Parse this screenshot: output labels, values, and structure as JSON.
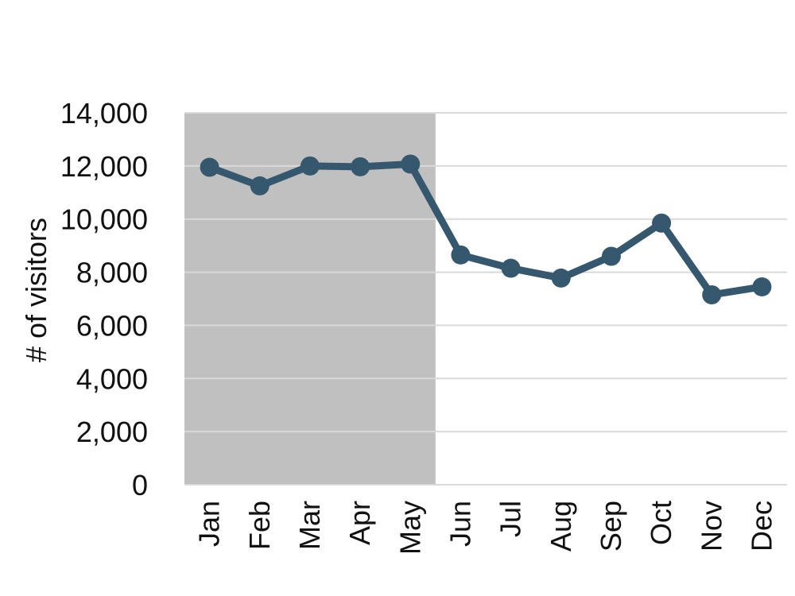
{
  "chart_data": {
    "type": "line",
    "title": "",
    "xlabel": "",
    "ylabel": "# of visitors",
    "categories": [
      "Jan",
      "Feb",
      "Mar",
      "Apr",
      "May",
      "Jun",
      "Jul",
      "Aug",
      "Sep",
      "Oct",
      "Nov",
      "Dec"
    ],
    "series": [
      {
        "values": [
          11950,
          11250,
          12000,
          11970,
          12070,
          8650,
          8150,
          7780,
          8600,
          9850,
          7150,
          7450
        ],
        "color": "#36586f"
      }
    ],
    "ylim": [
      0,
      14000
    ],
    "yticks": [
      0,
      2000,
      4000,
      6000,
      8000,
      10000,
      12000,
      14000
    ],
    "ytick_labels": [
      "0",
      "2,000",
      "4,000",
      "6,000",
      "8,000",
      "10,000",
      "12,000",
      "14,000"
    ],
    "grid": true,
    "shaded_region": {
      "from_category": "Jan",
      "to_category": "May",
      "color": "#c0c0c0"
    },
    "legend": "none"
  }
}
